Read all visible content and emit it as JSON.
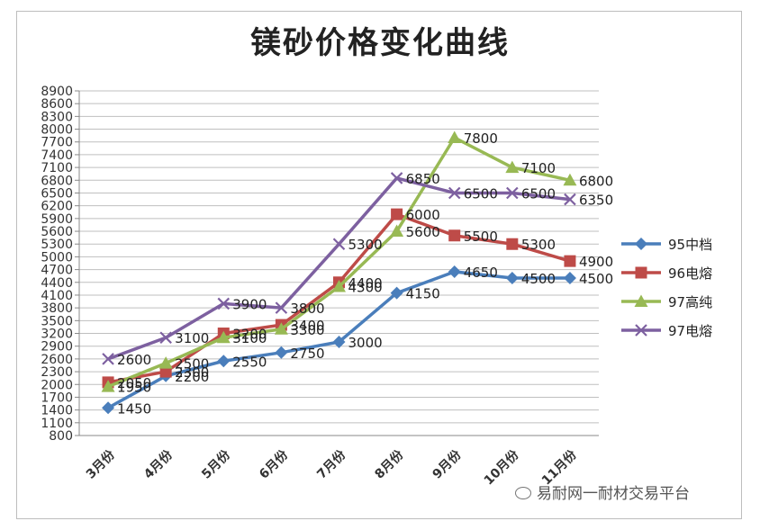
{
  "chart_data": {
    "type": "line",
    "title": "镁砂价格变化曲线",
    "categories": [
      "3月份",
      "4月份",
      "5月份",
      "6月份",
      "7月份",
      "8月份",
      "9月份",
      "10月份",
      "11月份"
    ],
    "ylim": [
      800,
      8900
    ],
    "yticks": [
      800,
      1100,
      1400,
      1700,
      2000,
      2300,
      2600,
      2900,
      3200,
      3500,
      3800,
      4100,
      4400,
      4700,
      5000,
      5300,
      5600,
      5900,
      6200,
      6500,
      6800,
      7100,
      7400,
      7700,
      8000,
      8300,
      8600,
      8900
    ],
    "grid": true,
    "legend_position": "right",
    "series": [
      {
        "name": "95中档",
        "color": "#4a7ebb",
        "marker": "diamond",
        "values": [
          1450,
          2200,
          2550,
          2750,
          3000,
          4150,
          4650,
          4500,
          4500
        ]
      },
      {
        "name": "96电熔",
        "color": "#be4b48",
        "marker": "square",
        "values": [
          2050,
          2300,
          3200,
          3400,
          4400,
          6000,
          5500,
          5300,
          4900
        ]
      },
      {
        "name": "97高纯",
        "color": "#98b954",
        "marker": "triangle",
        "values": [
          1950,
          2500,
          3100,
          3300,
          4300,
          5600,
          7800,
          7100,
          6800
        ]
      },
      {
        "name": "97电熔",
        "color": "#7d60a0",
        "marker": "x",
        "values": [
          2600,
          3100,
          3900,
          3800,
          5300,
          6850,
          6500,
          6500,
          6350
        ]
      }
    ]
  },
  "watermark": "易耐网一耐材交易平台"
}
